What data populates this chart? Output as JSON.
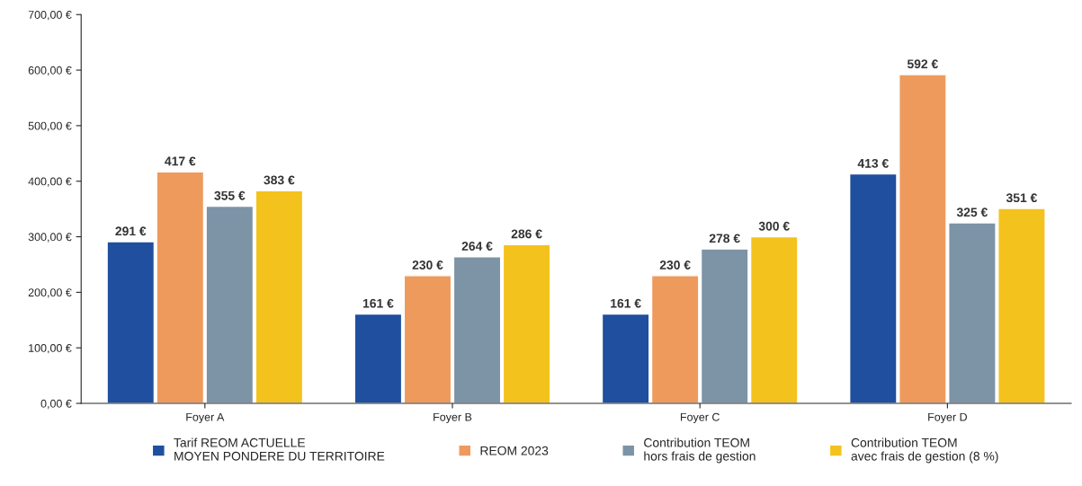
{
  "chart_data": {
    "type": "bar",
    "categories": [
      "Foyer A",
      "Foyer B",
      "Foyer C",
      "Foyer D"
    ],
    "series": [
      {
        "name": "Tarif REOM ACTUELLE\nMOYEN PONDERE DU TERRITOIRE",
        "color": "#1f4f9e",
        "values": [
          291,
          161,
          161,
          413
        ],
        "value_labels": [
          "291 €",
          "161 €",
          "161 €",
          "413 €"
        ]
      },
      {
        "name": "REOM 2023",
        "color": "#ee9a5c",
        "values": [
          417,
          230,
          230,
          592
        ],
        "value_labels": [
          "417 €",
          "230 €",
          "230 €",
          "592 €"
        ]
      },
      {
        "name": "Contribution TEOM\nhors frais de gestion",
        "color": "#7d93a6",
        "values": [
          355,
          264,
          278,
          325
        ],
        "value_labels": [
          "355 €",
          "264 €",
          "278 €",
          "325 €"
        ]
      },
      {
        "name": "Contribution TEOM\navec frais de gestion (8 %)",
        "color": "#f4c21c",
        "values": [
          383,
          286,
          300,
          351
        ],
        "value_labels": [
          "383 €",
          "286 €",
          "300 €",
          "351 €"
        ]
      }
    ],
    "ylim": [
      0,
      700
    ],
    "yticks": [
      {
        "value": 0,
        "label": "0,00 €"
      },
      {
        "value": 100,
        "label": "100,00 €"
      },
      {
        "value": 200,
        "label": "200,00 €"
      },
      {
        "value": 300,
        "label": "300,00 €"
      },
      {
        "value": 400,
        "label": "400,00 €"
      },
      {
        "value": 500,
        "label": "500,00 €"
      },
      {
        "value": 600,
        "label": "600,00 €"
      },
      {
        "value": 700,
        "label": "700,00 €"
      }
    ],
    "grid": false,
    "legend": "bottom"
  }
}
